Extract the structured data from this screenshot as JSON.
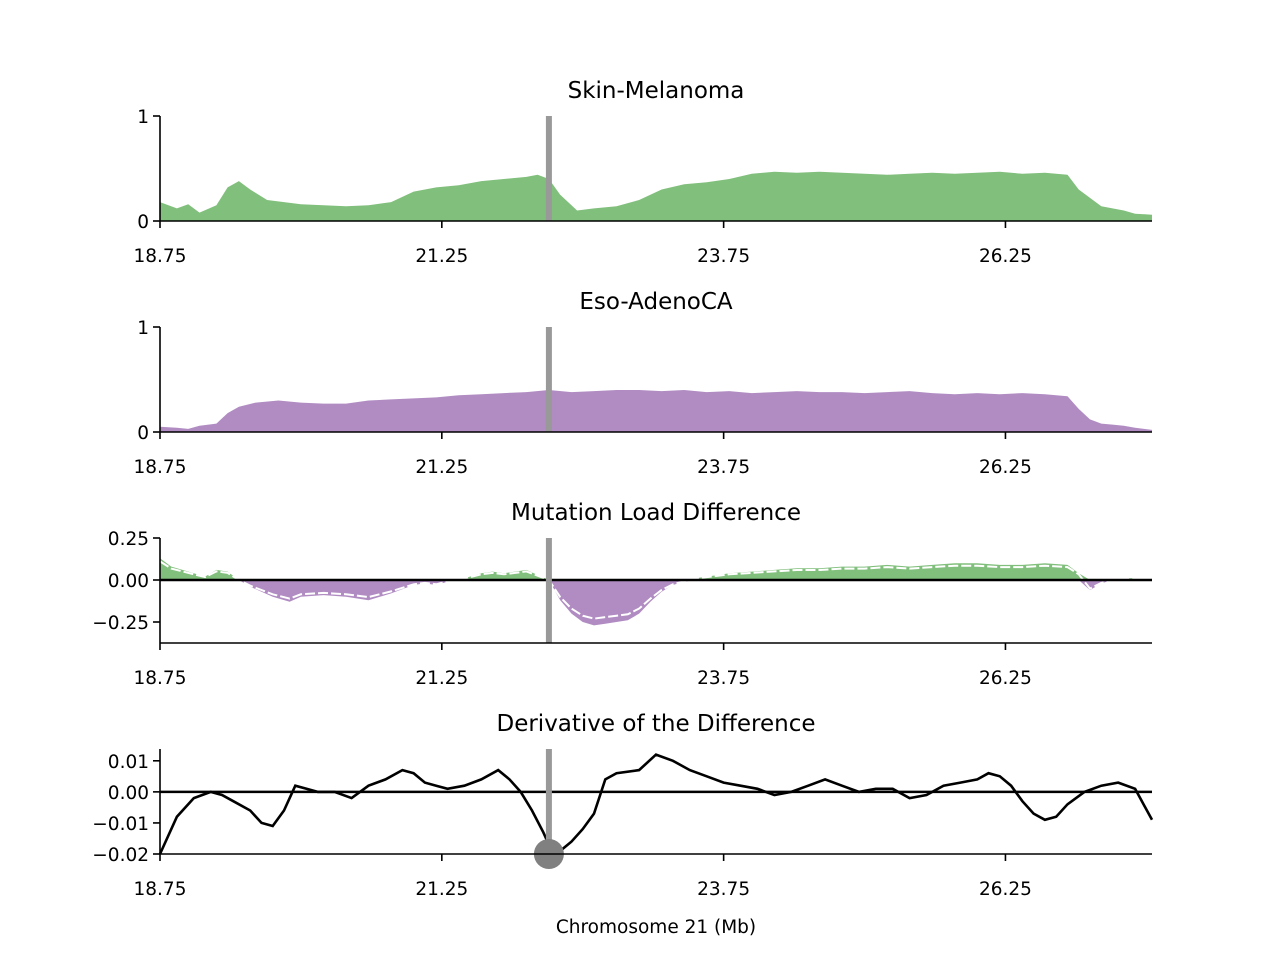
{
  "colors": {
    "melanoma": "#81bf7c",
    "adeno": "#b08cc2",
    "marker": "#999999",
    "dot": "#808080",
    "axis": "#000000"
  },
  "xlabel": "Chromosome 21 (Mb)",
  "x_ticks": [
    "18.75",
    "21.25",
    "23.75",
    "26.25"
  ],
  "marker_x": 22.2,
  "chart_data": [
    {
      "type": "area",
      "title": "Skin-Melanoma",
      "xlim": [
        18.75,
        27.55
      ],
      "ylim": [
        0,
        1
      ],
      "y_ticks": [
        "0",
        "1"
      ],
      "series": [
        {
          "x": [
            18.75,
            18.9,
            19.0,
            19.1,
            19.25,
            19.35,
            19.45,
            19.55,
            19.7,
            19.85,
            20.0,
            20.2,
            20.4,
            20.6,
            20.8,
            21.0,
            21.2,
            21.4,
            21.6,
            21.8,
            22.0,
            22.1,
            22.2,
            22.3,
            22.45,
            22.6,
            22.8,
            23.0,
            23.2,
            23.4,
            23.6,
            23.8,
            24.0,
            24.2,
            24.4,
            24.6,
            24.8,
            25.0,
            25.2,
            25.4,
            25.6,
            25.8,
            26.0,
            26.2,
            26.4,
            26.6,
            26.8,
            26.9,
            27.0,
            27.1,
            27.2,
            27.3,
            27.4,
            27.55
          ],
          "values": [
            0.18,
            0.12,
            0.16,
            0.08,
            0.15,
            0.32,
            0.38,
            0.3,
            0.2,
            0.18,
            0.16,
            0.15,
            0.14,
            0.15,
            0.18,
            0.28,
            0.32,
            0.34,
            0.38,
            0.4,
            0.42,
            0.44,
            0.4,
            0.25,
            0.1,
            0.12,
            0.14,
            0.2,
            0.3,
            0.35,
            0.37,
            0.4,
            0.45,
            0.47,
            0.46,
            0.47,
            0.46,
            0.45,
            0.44,
            0.45,
            0.46,
            0.45,
            0.46,
            0.47,
            0.45,
            0.46,
            0.44,
            0.3,
            0.22,
            0.14,
            0.12,
            0.1,
            0.07,
            0.06
          ]
        }
      ]
    },
    {
      "type": "area",
      "title": "Eso-AdenoCA",
      "xlim": [
        18.75,
        27.55
      ],
      "ylim": [
        0,
        1
      ],
      "y_ticks": [
        "0",
        "1"
      ],
      "series": [
        {
          "x": [
            18.75,
            18.9,
            19.0,
            19.1,
            19.25,
            19.35,
            19.45,
            19.6,
            19.8,
            20.0,
            20.2,
            20.4,
            20.6,
            20.8,
            21.0,
            21.2,
            21.4,
            21.6,
            21.8,
            22.0,
            22.2,
            22.4,
            22.6,
            22.8,
            23.0,
            23.2,
            23.4,
            23.6,
            23.8,
            24.0,
            24.2,
            24.4,
            24.6,
            24.8,
            25.0,
            25.2,
            25.4,
            25.6,
            25.8,
            26.0,
            26.2,
            26.4,
            26.6,
            26.8,
            26.9,
            27.0,
            27.1,
            27.2,
            27.3,
            27.4,
            27.55
          ],
          "values": [
            0.05,
            0.04,
            0.03,
            0.06,
            0.08,
            0.18,
            0.24,
            0.28,
            0.3,
            0.28,
            0.27,
            0.27,
            0.3,
            0.31,
            0.32,
            0.33,
            0.35,
            0.36,
            0.37,
            0.38,
            0.4,
            0.38,
            0.39,
            0.4,
            0.4,
            0.39,
            0.4,
            0.38,
            0.39,
            0.37,
            0.38,
            0.39,
            0.38,
            0.38,
            0.37,
            0.38,
            0.39,
            0.37,
            0.36,
            0.37,
            0.36,
            0.37,
            0.36,
            0.34,
            0.22,
            0.12,
            0.08,
            0.07,
            0.06,
            0.04,
            0.02
          ]
        }
      ]
    },
    {
      "type": "area",
      "title": "Mutation Load Difference",
      "xlim": [
        18.75,
        27.55
      ],
      "ylim": [
        -0.375,
        0.25
      ],
      "y_ticks": [
        "0.25",
        "0.00",
        "−0.25"
      ],
      "y_tick_values": [
        0.25,
        0.0,
        -0.25
      ],
      "series": [
        {
          "x": [
            18.75,
            18.85,
            18.95,
            19.05,
            19.15,
            19.25,
            19.35,
            19.45,
            19.55,
            19.65,
            19.75,
            19.9,
            20.0,
            20.2,
            20.4,
            20.6,
            20.8,
            21.0,
            21.1,
            21.2,
            21.3,
            21.4,
            21.5,
            21.6,
            21.7,
            21.8,
            21.9,
            22.0,
            22.1,
            22.2,
            22.3,
            22.4,
            22.5,
            22.6,
            22.7,
            22.8,
            22.9,
            23.0,
            23.1,
            23.2,
            23.3,
            23.4,
            23.5,
            23.6,
            23.7,
            23.8,
            24.0,
            24.2,
            24.4,
            24.6,
            24.8,
            25.0,
            25.2,
            25.4,
            25.6,
            25.8,
            26.0,
            26.2,
            26.4,
            26.6,
            26.8,
            26.9,
            27.0,
            27.1,
            27.2,
            27.3,
            27.4,
            27.55
          ],
          "values": [
            0.13,
            0.08,
            0.06,
            0.04,
            0.02,
            0.06,
            0.05,
            0.0,
            -0.04,
            -0.07,
            -0.1,
            -0.13,
            -0.1,
            -0.09,
            -0.1,
            -0.12,
            -0.08,
            -0.03,
            -0.02,
            -0.03,
            -0.01,
            0.0,
            0.02,
            0.04,
            0.05,
            0.04,
            0.05,
            0.06,
            0.03,
            0.0,
            -0.12,
            -0.2,
            -0.25,
            -0.27,
            -0.26,
            -0.25,
            -0.24,
            -0.2,
            -0.13,
            -0.07,
            -0.03,
            -0.01,
            0.01,
            0.02,
            0.03,
            0.04,
            0.05,
            0.06,
            0.07,
            0.07,
            0.08,
            0.08,
            0.09,
            0.08,
            0.09,
            0.1,
            0.1,
            0.09,
            0.09,
            0.1,
            0.09,
            0.04,
            -0.06,
            -0.02,
            0.0,
            0.01,
            0.01,
            0.0
          ]
        }
      ]
    },
    {
      "type": "line",
      "title": "Derivative of the Difference",
      "xlim": [
        18.75,
        27.55
      ],
      "ylim": [
        -0.02,
        0.0138
      ],
      "y_ticks": [
        "0.01",
        "0.00",
        "−0.01",
        "−0.02"
      ],
      "y_tick_values": [
        0.01,
        0.0,
        -0.01,
        -0.02
      ],
      "series": [
        {
          "x": [
            18.75,
            18.9,
            19.05,
            19.2,
            19.3,
            19.4,
            19.55,
            19.65,
            19.75,
            19.85,
            19.95,
            20.05,
            20.15,
            20.3,
            20.45,
            20.6,
            20.75,
            20.9,
            21.0,
            21.1,
            21.2,
            21.3,
            21.45,
            21.6,
            21.75,
            21.85,
            21.95,
            22.05,
            22.15,
            22.2,
            22.3,
            22.4,
            22.5,
            22.6,
            22.7,
            22.8,
            23.0,
            23.15,
            23.3,
            23.45,
            23.6,
            23.75,
            23.9,
            24.05,
            24.2,
            24.35,
            24.5,
            24.65,
            24.8,
            24.95,
            25.1,
            25.25,
            25.4,
            25.55,
            25.7,
            25.85,
            26.0,
            26.1,
            26.2,
            26.3,
            26.4,
            26.5,
            26.6,
            26.7,
            26.8,
            26.95,
            27.1,
            27.25,
            27.4,
            27.55
          ],
          "values": [
            -0.02,
            -0.008,
            -0.002,
            0.0,
            -0.001,
            -0.003,
            -0.006,
            -0.01,
            -0.011,
            -0.006,
            0.002,
            0.001,
            0.0,
            0.0,
            -0.002,
            0.002,
            0.004,
            0.007,
            0.006,
            0.003,
            0.002,
            0.001,
            0.002,
            0.004,
            0.007,
            0.004,
            0.0,
            -0.006,
            -0.013,
            -0.017,
            -0.019,
            -0.016,
            -0.012,
            -0.007,
            0.004,
            0.006,
            0.007,
            0.012,
            0.01,
            0.007,
            0.005,
            0.003,
            0.002,
            0.001,
            -0.001,
            0.0,
            0.002,
            0.004,
            0.002,
            0.0,
            0.001,
            0.001,
            -0.002,
            -0.001,
            0.002,
            0.003,
            0.004,
            0.006,
            0.005,
            0.002,
            -0.003,
            -0.007,
            -0.009,
            -0.008,
            -0.004,
            0.0,
            0.002,
            0.003,
            0.001,
            -0.009
          ]
        }
      ]
    }
  ]
}
